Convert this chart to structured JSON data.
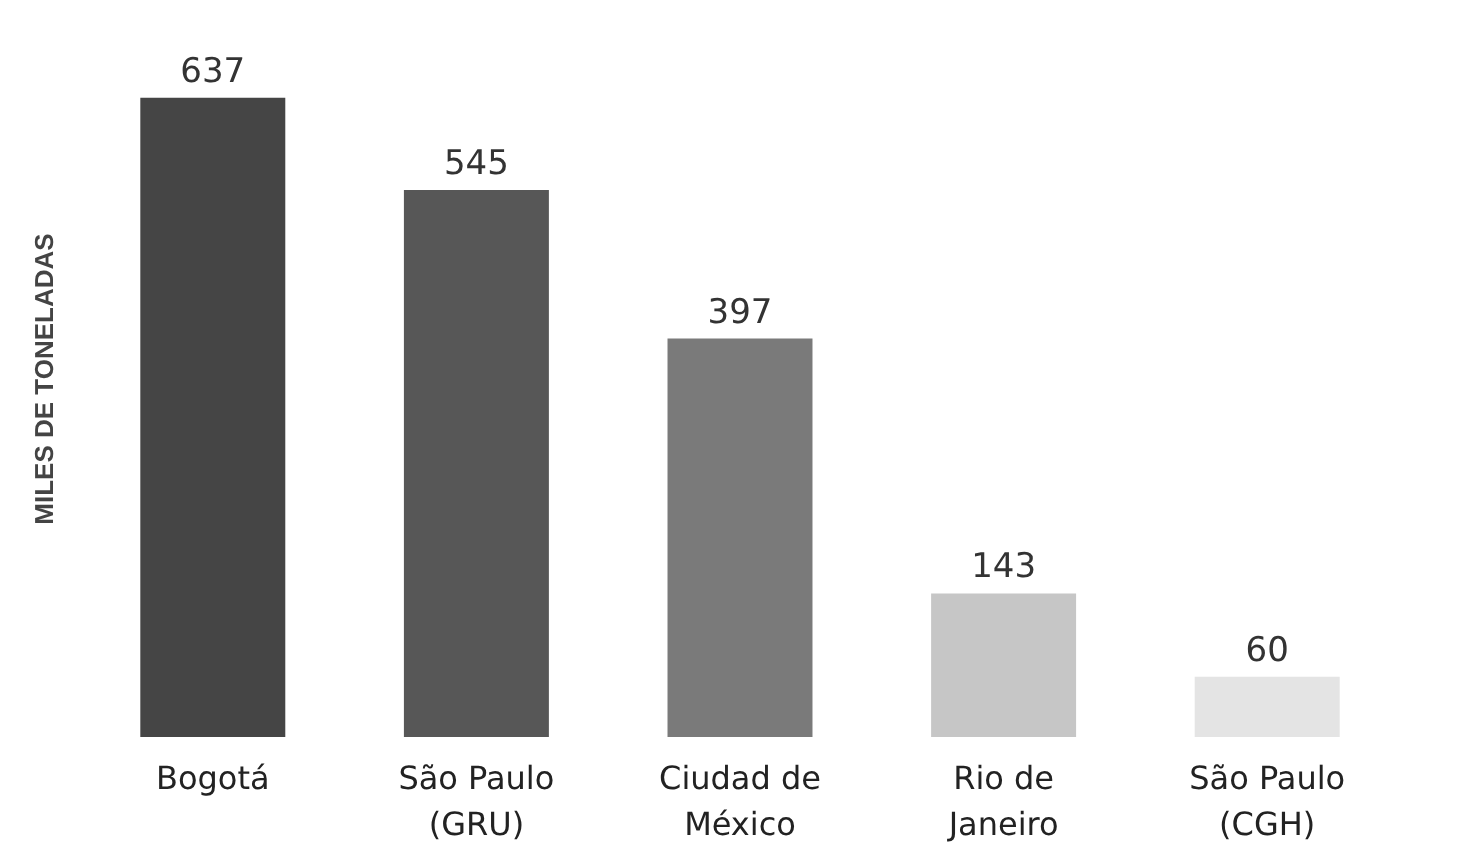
{
  "chart_data": {
    "type": "bar",
    "ylabel": "MILES DE TONELADAS",
    "categories": [
      "Bogotá",
      "São Paulo\n(GRU)",
      "Ciudad de\nMéxico",
      "Rio de\nJaneiro",
      "São Paulo\n(CGH)"
    ],
    "values": [
      637,
      545,
      397,
      143,
      60
    ],
    "colors": [
      "#454545",
      "#575757",
      "#7a7a7a",
      "#c6c6c6",
      "#e4e4e4"
    ],
    "data_labels": true,
    "grid": false
  }
}
